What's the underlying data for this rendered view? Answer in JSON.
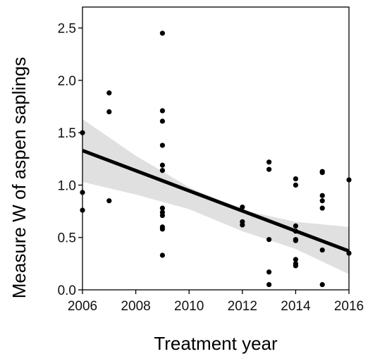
{
  "chart_data": {
    "type": "scatter",
    "title": "",
    "xlabel": "Treatment year",
    "ylabel": "Measure W of aspen saplings",
    "xlim": [
      2006,
      2016
    ],
    "ylim": [
      0,
      2.7
    ],
    "xticks": [
      2006,
      2008,
      2010,
      2012,
      2014,
      2016
    ],
    "xtick_labels": [
      "2006",
      "2008",
      "2010",
      "2012",
      "2014",
      "2016"
    ],
    "yticks": [
      0,
      0.5,
      1,
      1.5,
      2,
      2.5
    ],
    "ytick_labels": [
      "0.0",
      "0.5",
      "1.0",
      "1.5",
      "2.0",
      "2.5"
    ],
    "grid": false,
    "legend": "none",
    "points": [
      {
        "x": 2006,
        "y": 1.5
      },
      {
        "x": 2006,
        "y": 0.93
      },
      {
        "x": 2006,
        "y": 0.76
      },
      {
        "x": 2007,
        "y": 1.88
      },
      {
        "x": 2007,
        "y": 1.7
      },
      {
        "x": 2007,
        "y": 0.85
      },
      {
        "x": 2009,
        "y": 2.45
      },
      {
        "x": 2009,
        "y": 1.71
      },
      {
        "x": 2009,
        "y": 1.61
      },
      {
        "x": 2009,
        "y": 1.38
      },
      {
        "x": 2009,
        "y": 1.19
      },
      {
        "x": 2009,
        "y": 1.14
      },
      {
        "x": 2009,
        "y": 0.78
      },
      {
        "x": 2009,
        "y": 0.74
      },
      {
        "x": 2009,
        "y": 0.71
      },
      {
        "x": 2009,
        "y": 0.6
      },
      {
        "x": 2009,
        "y": 0.58
      },
      {
        "x": 2009,
        "y": 0.33
      },
      {
        "x": 2012,
        "y": 0.79
      },
      {
        "x": 2012,
        "y": 0.65
      },
      {
        "x": 2012,
        "y": 0.62
      },
      {
        "x": 2013,
        "y": 1.22
      },
      {
        "x": 2013,
        "y": 1.15
      },
      {
        "x": 2013,
        "y": 0.48
      },
      {
        "x": 2013,
        "y": 0.17
      },
      {
        "x": 2013,
        "y": 0.05
      },
      {
        "x": 2014,
        "y": 1.06
      },
      {
        "x": 2014,
        "y": 1.0
      },
      {
        "x": 2014,
        "y": 0.61
      },
      {
        "x": 2014,
        "y": 0.56
      },
      {
        "x": 2014,
        "y": 0.48
      },
      {
        "x": 2014,
        "y": 0.47
      },
      {
        "x": 2014,
        "y": 0.29
      },
      {
        "x": 2014,
        "y": 0.25
      },
      {
        "x": 2014,
        "y": 0.23
      },
      {
        "x": 2015,
        "y": 1.13
      },
      {
        "x": 2015,
        "y": 1.12
      },
      {
        "x": 2015,
        "y": 0.9
      },
      {
        "x": 2015,
        "y": 0.85
      },
      {
        "x": 2015,
        "y": 0.78
      },
      {
        "x": 2015,
        "y": 0.38
      },
      {
        "x": 2015,
        "y": 0.05
      },
      {
        "x": 2016,
        "y": 1.05
      },
      {
        "x": 2016,
        "y": 0.35
      }
    ],
    "fit_line": {
      "x": [
        2006,
        2016
      ],
      "y": [
        1.33,
        0.37
      ]
    },
    "confidence_band": {
      "x": [
        2006,
        2008,
        2010,
        2012,
        2014,
        2016
      ],
      "upper": [
        1.63,
        1.28,
        0.98,
        0.76,
        0.65,
        0.6
      ],
      "lower": [
        1.03,
        0.91,
        0.77,
        0.56,
        0.39,
        0.15
      ]
    },
    "colors": {
      "points": "#000000",
      "fit_line": "#000000",
      "band": "#e0e0e0",
      "axis": "#000000"
    }
  }
}
